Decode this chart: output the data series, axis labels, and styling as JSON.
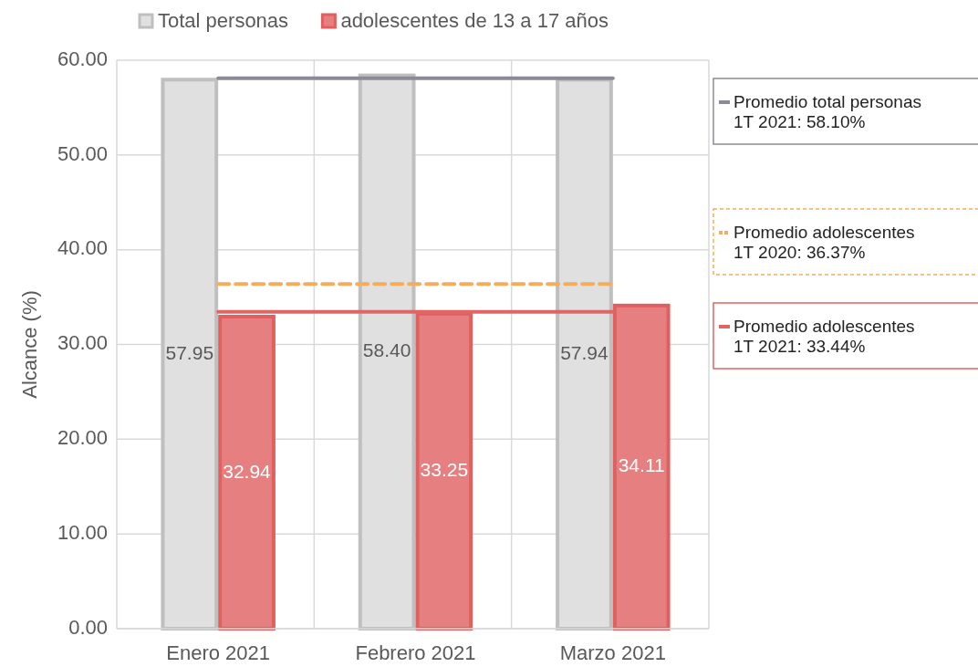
{
  "chart_data": {
    "type": "bar",
    "ylabel": "Alcance (%)",
    "categories": [
      "Enero 2021",
      "Febrero 2021",
      "Marzo 2021"
    ],
    "series": [
      {
        "name": "Total personas",
        "color": "#e0e0e0",
        "values": [
          57.95,
          58.4,
          57.94
        ],
        "value_labels": [
          "57.95",
          "58.40",
          "57.94"
        ]
      },
      {
        "name": "adolescentes de 13 a 17 años",
        "color": "#e68080",
        "values": [
          32.94,
          33.25,
          34.11
        ],
        "value_labels": [
          "32.94",
          "33.25",
          "34.11"
        ]
      }
    ],
    "ylim": [
      0,
      60
    ],
    "yticks": [
      {
        "value": 0,
        "label": "0.00"
      },
      {
        "value": 10,
        "label": "10.00"
      },
      {
        "value": 20,
        "label": "20.00"
      },
      {
        "value": 30,
        "label": "30.00"
      },
      {
        "value": 40,
        "label": "40.00"
      },
      {
        "value": 50,
        "label": "50.00"
      },
      {
        "value": 60,
        "label": "60.00"
      }
    ],
    "grid": true,
    "legend": "top",
    "ref_lines": [
      {
        "axis": "y",
        "value": 58.1,
        "label": "Promedio total personas\n1T 2021: 58.10%",
        "color": "#8c8a94",
        "line_style": "solid"
      },
      {
        "axis": "y",
        "value": 36.37,
        "label": "Promedio adolescentes\n1T 2020: 36.37%",
        "color": "#f5ad5b",
        "line_style": "dashed"
      },
      {
        "axis": "y",
        "value": 33.44,
        "label": "Promedio adolescentes\n1T 2021: 33.44%",
        "color": "#e06666",
        "line_style": "solid"
      }
    ]
  }
}
